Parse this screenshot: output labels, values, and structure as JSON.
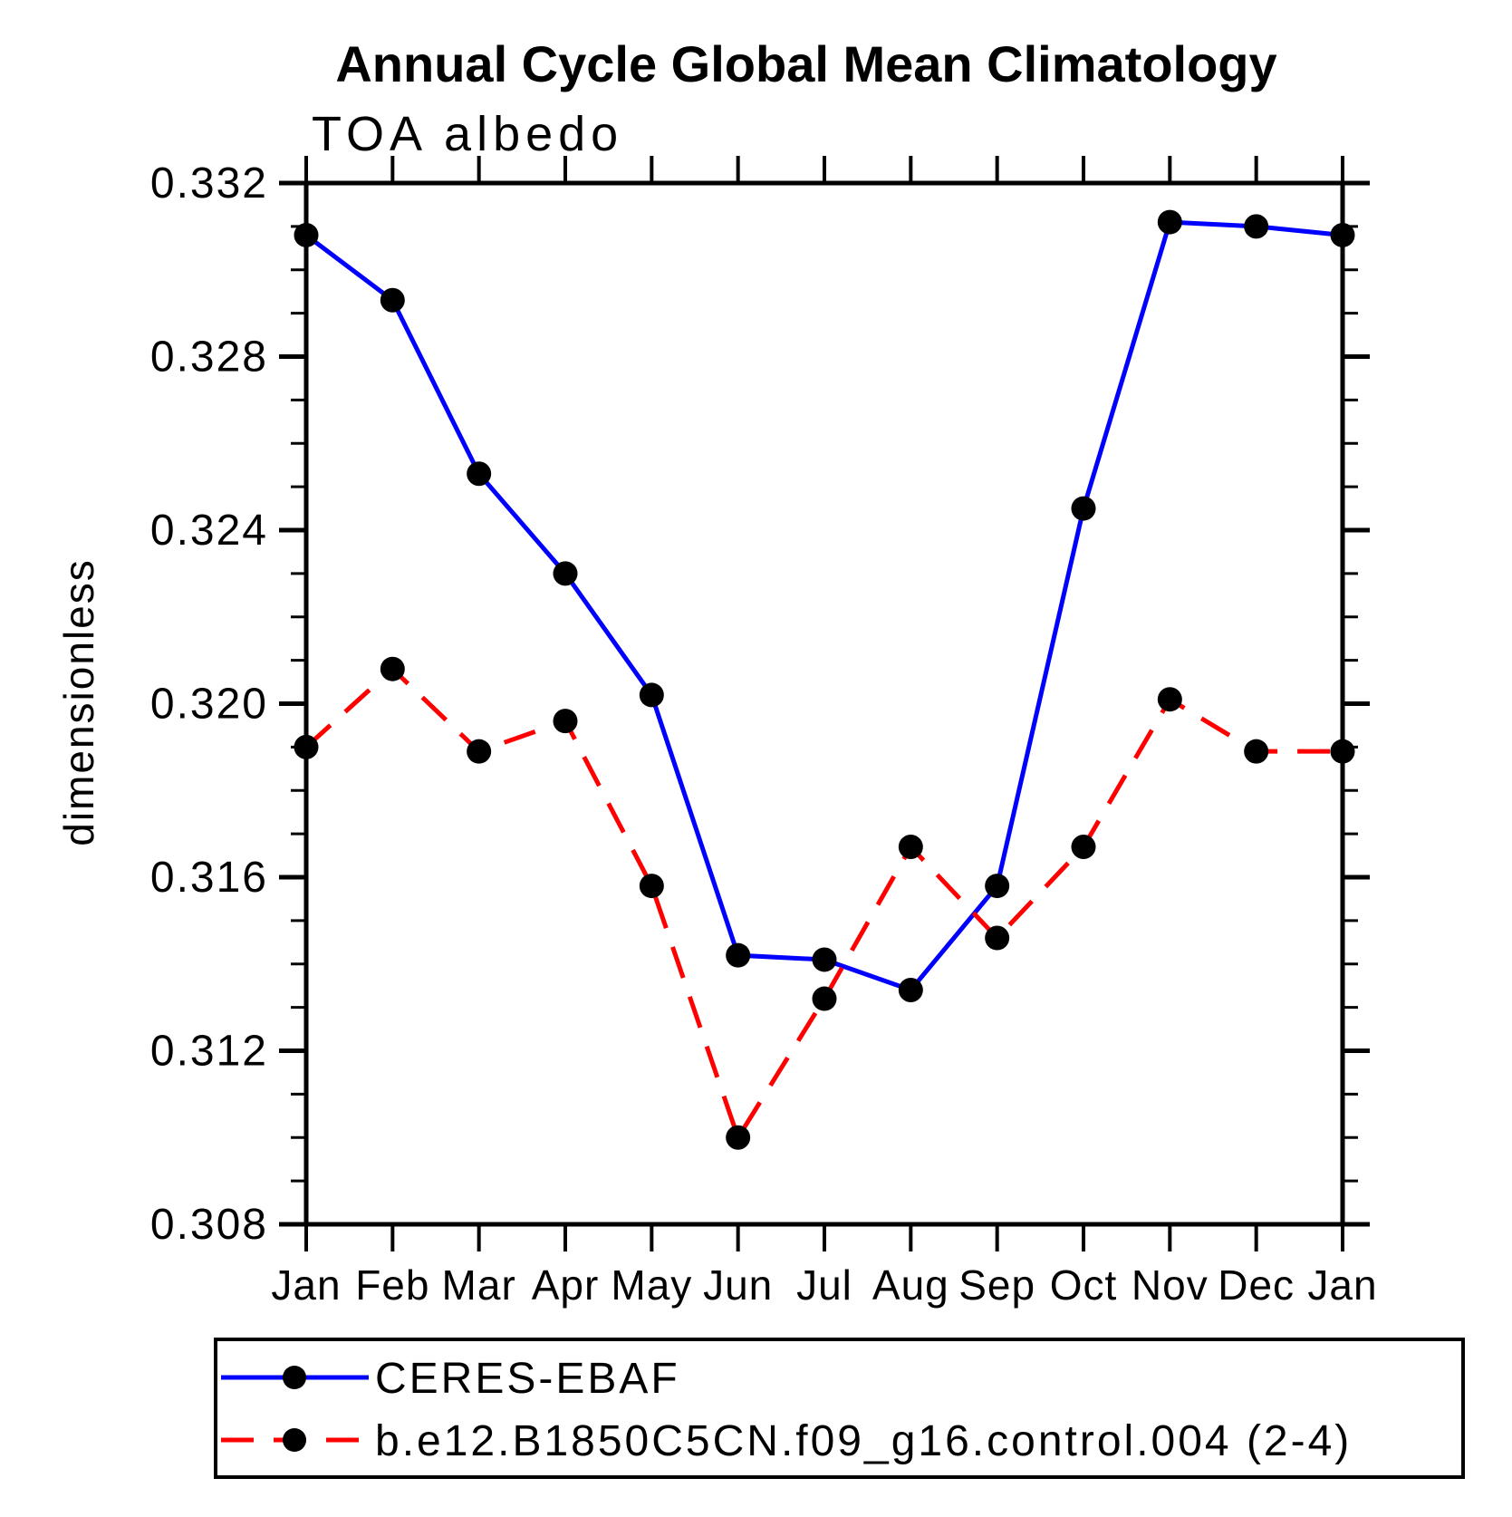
{
  "chart_data": {
    "type": "line",
    "title": "Annual Cycle Global Mean Climatology",
    "subtitle": "TOA albedo",
    "ylabel": "dimensionless",
    "xlabel": "",
    "categories": [
      "Jan",
      "Feb",
      "Mar",
      "Apr",
      "May",
      "Jun",
      "Jul",
      "Aug",
      "Sep",
      "Oct",
      "Nov",
      "Dec",
      "Jan"
    ],
    "series": [
      {
        "name": "CERES-EBAF",
        "color": "#0000ff",
        "line_style": "solid",
        "marker": "filled-circle",
        "marker_color": "#000000",
        "values": [
          0.3308,
          0.3293,
          0.3253,
          0.323,
          0.3202,
          0.3142,
          0.3141,
          0.3134,
          0.3158,
          0.3245,
          0.3311,
          0.331,
          0.3308
        ]
      },
      {
        "name": "b.e12.B1850C5CN.f09_g16.control.004 (2-4)",
        "color": "#ff0000",
        "line_style": "dashed",
        "marker": "filled-circle",
        "marker_color": "#000000",
        "values": [
          0.319,
          0.3208,
          0.3189,
          0.3196,
          0.3158,
          0.31,
          0.3132,
          0.3167,
          0.3146,
          0.3167,
          0.3201,
          0.3189,
          0.3189
        ]
      }
    ],
    "ylim": [
      0.308,
      0.332
    ],
    "ytick_major_step": 0.004,
    "ytick_minor_step": 0.001,
    "ytick_labels": [
      "0.308",
      "0.312",
      "0.316",
      "0.320",
      "0.324",
      "0.328",
      "0.332"
    ],
    "grid": false,
    "legend_position": "bottom",
    "axis_color": "#000000",
    "background_color": "#ffffff"
  }
}
